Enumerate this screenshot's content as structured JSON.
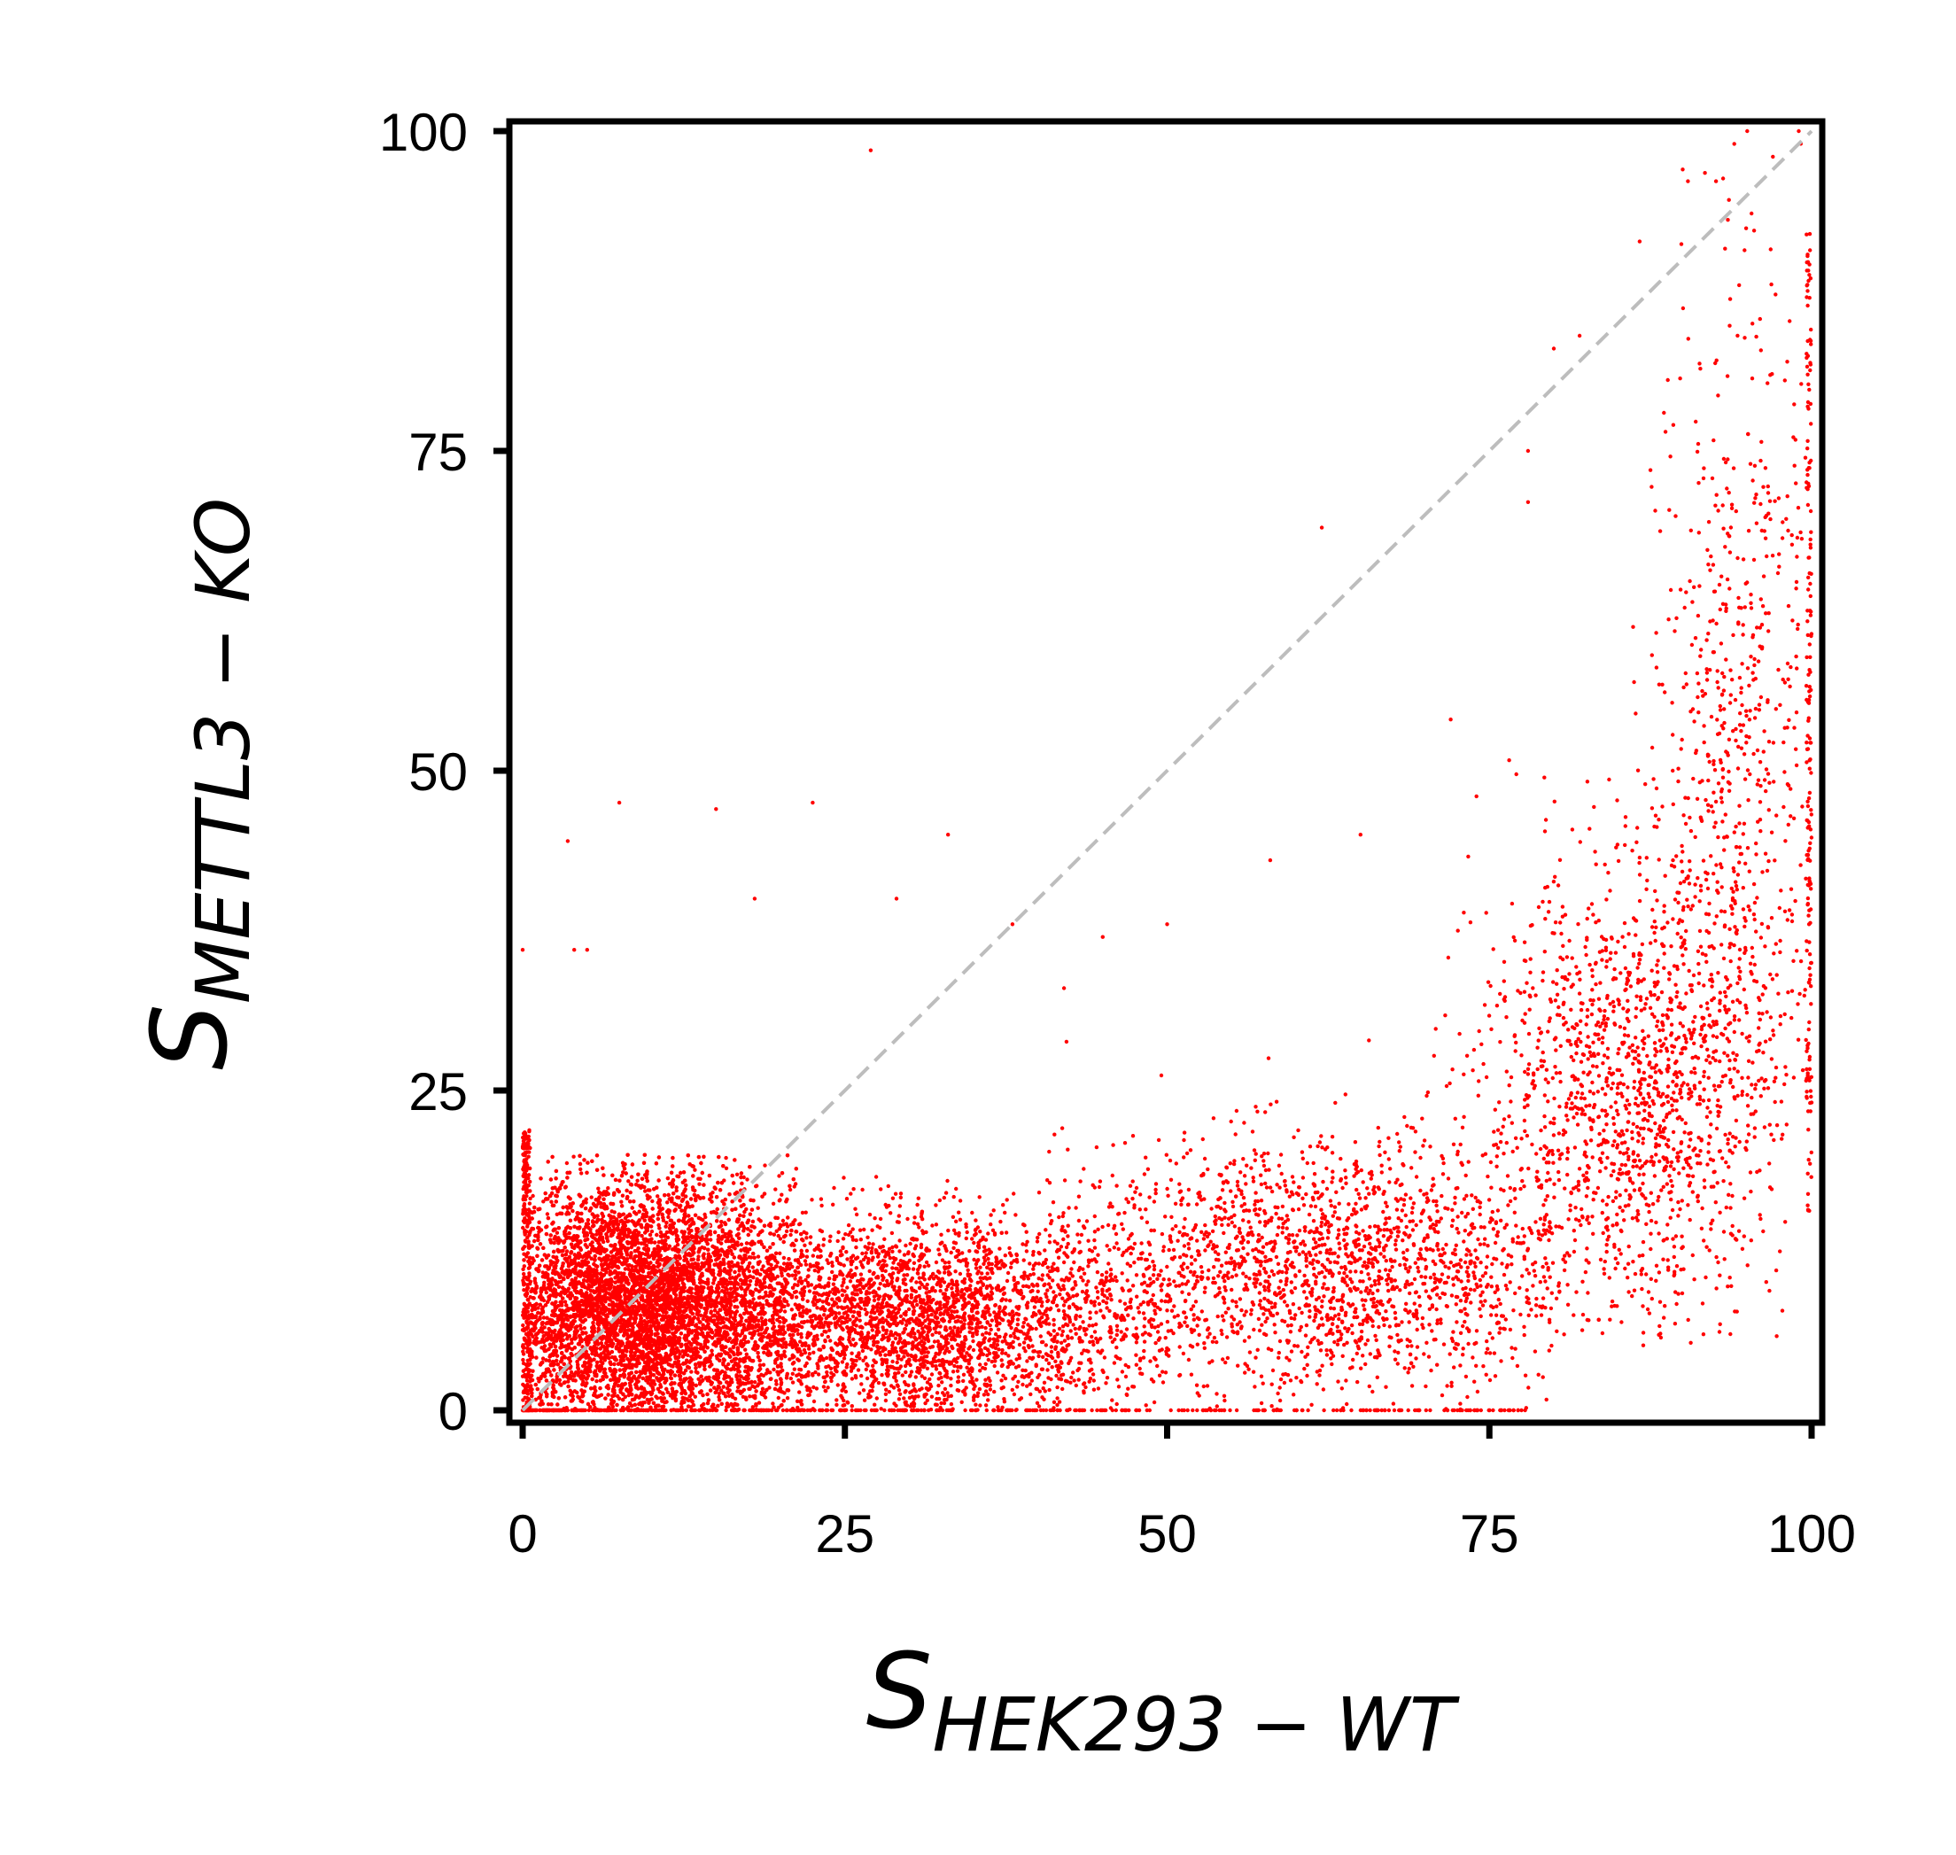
{
  "chart_data": {
    "type": "scatter",
    "title": "",
    "xlabel": {
      "main": "S",
      "sub": "HEK293 − WT"
    },
    "ylabel": {
      "main": "S",
      "sub": "METTL3 − KO"
    },
    "xlim": [
      0,
      100
    ],
    "ylim": [
      0,
      100
    ],
    "x_ticks": [
      0,
      25,
      50,
      75,
      100
    ],
    "y_ticks": [
      0,
      25,
      50,
      75,
      100
    ],
    "x_tick_labels": [
      "0",
      "25",
      "50",
      "75",
      "100"
    ],
    "y_tick_labels": [
      "0",
      "25",
      "50",
      "75",
      "100"
    ],
    "grid": false,
    "legend": "none",
    "reference_line": {
      "from": [
        0,
        0
      ],
      "to": [
        100,
        100
      ],
      "style": "dashed",
      "color": "#bdbdbd"
    },
    "series": [
      {
        "color": "#ff0000",
        "clusters": [
          {
            "x_range": [
              0.5,
              22
            ],
            "y_range": [
              0,
              20
            ],
            "count": 9000,
            "x_mean": 9,
            "y_mean": 8,
            "x_sd": 6,
            "y_sd": 5
          },
          {
            "x_range": [
              15,
              50
            ],
            "y_range": [
              0,
              24
            ],
            "count": 3200,
            "x_mean": 30,
            "y_mean": 7,
            "x_sd": 9,
            "y_sd": 4
          },
          {
            "x_range": [
              40,
              80
            ],
            "y_range": [
              0,
              30
            ],
            "count": 2000,
            "x_mean": 62,
            "y_mean": 11,
            "x_sd": 10,
            "y_sd": 5
          },
          {
            "x_range": [
              70,
              98
            ],
            "y_range": [
              5,
              55
            ],
            "count": 1500,
            "x_mean": 86,
            "y_mean": 24,
            "x_sd": 6,
            "y_sd": 9
          },
          {
            "x_range": [
              86,
              100
            ],
            "y_range": [
              20,
              100
            ],
            "count": 700,
            "x_mean": 94,
            "y_mean": 50,
            "x_sd": 3.5,
            "y_sd": 18
          }
        ],
        "vertical_band_x": 100,
        "vertical_band_y_range": [
          15,
          92
        ],
        "zero_row_x_range": [
          0,
          78
        ],
        "outliers": [
          [
            27,
            98.5
          ],
          [
            7.5,
            47.5
          ],
          [
            15,
            47
          ],
          [
            22.5,
            47.5
          ],
          [
            33,
            45
          ],
          [
            3.5,
            44.5
          ],
          [
            62,
            69
          ],
          [
            78,
            71
          ],
          [
            78,
            75
          ],
          [
            58,
            43
          ],
          [
            50,
            38
          ],
          [
            29,
            40
          ],
          [
            18,
            40
          ],
          [
            4,
            36
          ],
          [
            5,
            36
          ],
          [
            0,
            36
          ],
          [
            95,
            100
          ],
          [
            99,
            100
          ],
          [
            97,
            98
          ],
          [
            94,
            99
          ],
          [
            90,
            97
          ],
          [
            82,
            84
          ],
          [
            80,
            83
          ],
          [
            72,
            54
          ],
          [
            74,
            48
          ],
          [
            65,
            45
          ],
          [
            45,
            37
          ],
          [
            42,
            33
          ],
          [
            38,
            38
          ]
        ]
      }
    ]
  }
}
